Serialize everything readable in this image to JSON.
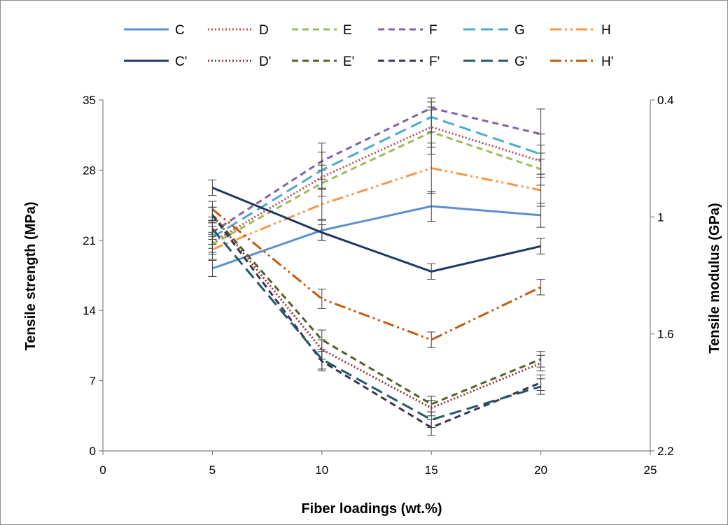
{
  "chart_data": {
    "type": "line",
    "title": "",
    "xlabel": "Fiber loadings (wt.%)",
    "ylabel": "Tensile strength (MPa)",
    "y2label": "Tensile modulus (GPa)",
    "x": [
      5,
      10,
      15,
      20
    ],
    "xlim": [
      0,
      25
    ],
    "xticks": [
      0,
      5,
      10,
      15,
      20,
      25
    ],
    "ylim": [
      0,
      35
    ],
    "yticks": [
      0,
      7,
      14,
      21,
      28,
      35
    ],
    "y2lim": [
      0.4,
      2.2
    ],
    "y2ticks": [
      0.4,
      1,
      1.6,
      2.2
    ],
    "y2_inverted": true,
    "grid": false,
    "legend_position": "top",
    "series": [
      {
        "name": "C",
        "axis": "left",
        "color": "#5B8FCE",
        "dash": "solid",
        "values": [
          18.2,
          22.0,
          24.4,
          23.5
        ],
        "err": [
          0.8,
          1.0,
          1.5,
          1.2
        ]
      },
      {
        "name": "D",
        "axis": "left",
        "color": "#C0504D",
        "dash": "dotted",
        "values": [
          20.8,
          27.3,
          32.3,
          28.9
        ],
        "err": [
          1.0,
          1.2,
          2.0,
          1.6
        ]
      },
      {
        "name": "E",
        "axis": "left",
        "color": "#9BBB59",
        "dash": "dashed",
        "values": [
          20.6,
          26.7,
          31.8,
          28.1
        ],
        "err": [
          1.0,
          1.3,
          2.2,
          1.6
        ]
      },
      {
        "name": "F",
        "axis": "left",
        "color": "#8064A2",
        "dash": "dashed",
        "values": [
          21.8,
          28.9,
          34.2,
          31.6
        ],
        "err": [
          1.2,
          1.8,
          1.0,
          2.5
        ]
      },
      {
        "name": "G",
        "axis": "left",
        "color": "#4BACC6",
        "dash": "longdash",
        "values": [
          21.3,
          28.0,
          33.3,
          29.6
        ],
        "err": [
          1.1,
          1.8,
          1.5,
          2.0
        ]
      },
      {
        "name": "H",
        "axis": "left",
        "color": "#F79646",
        "dash": "dashdotdot",
        "values": [
          20.1,
          24.6,
          28.2,
          26.0
        ],
        "err": [
          1.0,
          1.5,
          2.5,
          1.6
        ]
      },
      {
        "name": "C'",
        "axis": "right",
        "color": "#1F3864",
        "dash": "solid",
        "values": [
          0.85,
          1.08,
          1.28,
          1.15
        ],
        "err": [
          0.04,
          0.04,
          0.04,
          0.04
        ]
      },
      {
        "name": "D'",
        "axis": "right",
        "color": "#943634",
        "dash": "dotted",
        "values": [
          0.99,
          1.68,
          1.98,
          1.75
        ],
        "err": [
          0.04,
          0.05,
          0.04,
          0.04
        ]
      },
      {
        "name": "E'",
        "axis": "right",
        "color": "#4F6228",
        "dash": "dashed",
        "values": [
          0.99,
          1.63,
          1.96,
          1.73
        ],
        "err": [
          0.04,
          0.05,
          0.04,
          0.04
        ]
      },
      {
        "name": "F'",
        "axis": "right",
        "color": "#3F3151",
        "dash": "dashed",
        "values": [
          0.99,
          1.74,
          2.08,
          1.85
        ],
        "err": [
          0.04,
          0.05,
          0.04,
          0.04
        ]
      },
      {
        "name": "G'",
        "axis": "right",
        "color": "#215968",
        "dash": "longdash",
        "values": [
          1.06,
          1.73,
          2.04,
          1.87
        ],
        "err": [
          0.04,
          0.05,
          0.04,
          0.04
        ]
      },
      {
        "name": "H'",
        "axis": "right",
        "color": "#C55A11",
        "dash": "dashdotdot",
        "values": [
          0.96,
          1.42,
          1.63,
          1.36
        ],
        "err": [
          0.04,
          0.05,
          0.04,
          0.04
        ]
      }
    ]
  }
}
